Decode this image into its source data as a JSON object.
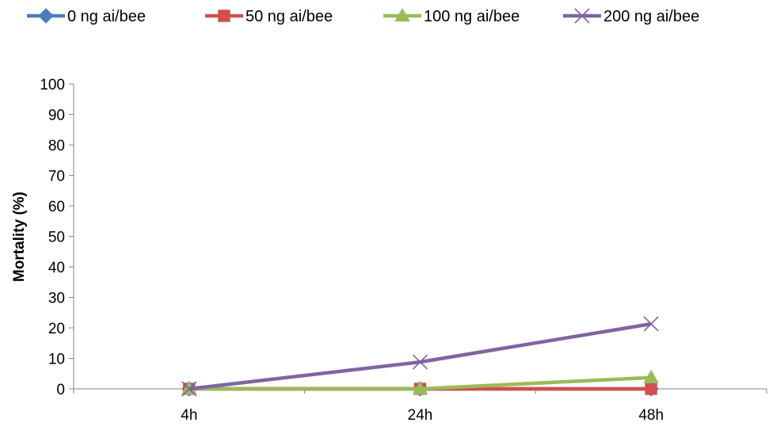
{
  "chart_data": {
    "type": "line",
    "title": "",
    "xlabel": "",
    "ylabel": "Mortality (%)",
    "categories": [
      "4h",
      "24h",
      "48h"
    ],
    "ylim": [
      0,
      100
    ],
    "yticks": [
      0,
      10,
      20,
      30,
      40,
      50,
      60,
      70,
      80,
      90,
      100
    ],
    "grid": false,
    "legend_position": "top",
    "series": [
      {
        "name": "0 ng ai/bee",
        "values": [
          0,
          0,
          0
        ],
        "color": "#4a7ebb",
        "marker": "diamond"
      },
      {
        "name": "50 ng ai/bee",
        "values": [
          0,
          0,
          0
        ],
        "color": "#d0504c",
        "marker": "square"
      },
      {
        "name": "100 ng ai/bee",
        "values": [
          0,
          0,
          3.7
        ],
        "color": "#9bbb59",
        "marker": "triangle"
      },
      {
        "name": "200 ng ai/bee",
        "values": [
          0,
          8.8,
          21.3
        ],
        "color": "#8064a2",
        "marker": "x"
      }
    ]
  }
}
